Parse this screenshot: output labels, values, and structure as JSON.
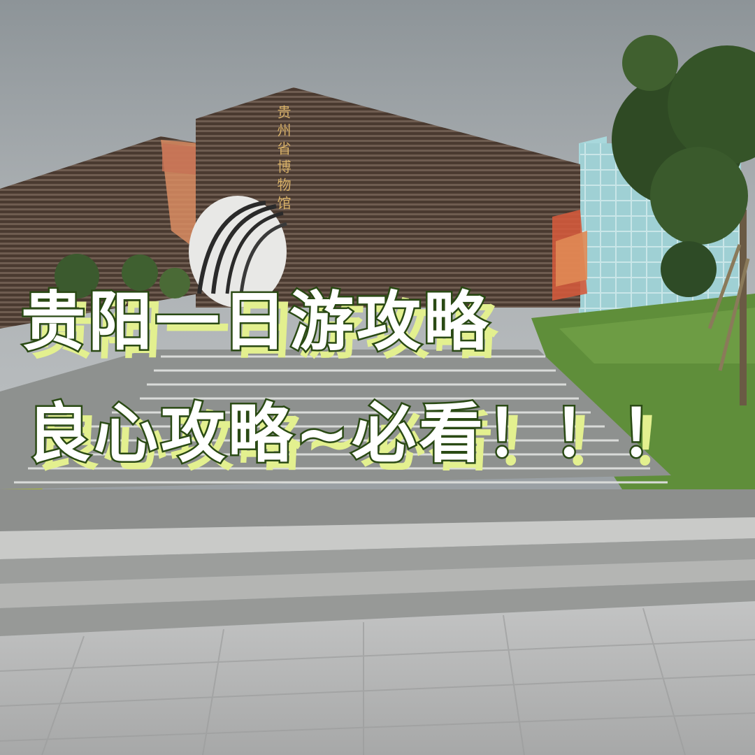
{
  "headline": {
    "line1": "贵阳一日游攻略",
    "line2": "良心攻略~必看！！！"
  },
  "building_sign": "贵州省博物馆",
  "colors": {
    "text_fill": "#ffffff",
    "text_outline": "#2a4a14",
    "text_highlight": "#e3f08f"
  }
}
